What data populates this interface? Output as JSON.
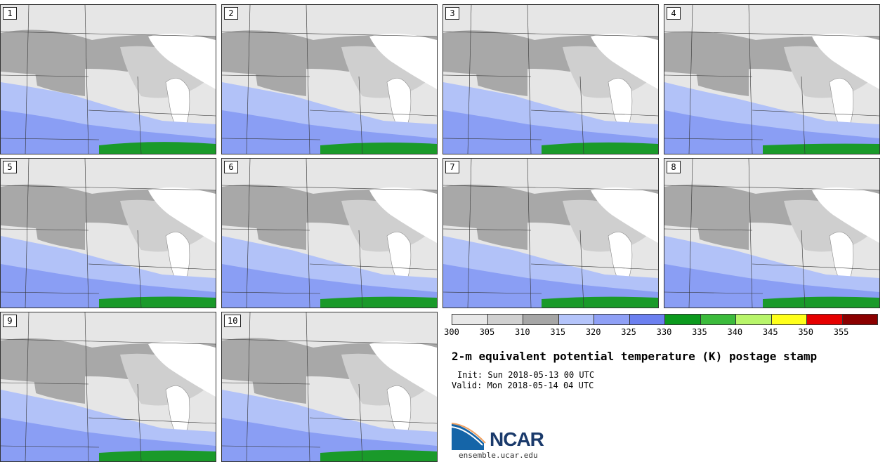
{
  "panels": [
    {
      "label": "1"
    },
    {
      "label": "2"
    },
    {
      "label": "3"
    },
    {
      "label": "4"
    },
    {
      "label": "5"
    },
    {
      "label": "6"
    },
    {
      "label": "7"
    },
    {
      "label": "8"
    },
    {
      "label": "9"
    },
    {
      "label": "10"
    }
  ],
  "legend": {
    "ticks": [
      "300",
      "305",
      "310",
      "315",
      "320",
      "325",
      "330",
      "335",
      "340",
      "345",
      "350",
      "355"
    ],
    "colors": [
      "#e8e8e8",
      "#d0d0d0",
      "#a6a6a6",
      "#b4c4fa",
      "#8fa0f6",
      "#6c80f0",
      "#0c9a1e",
      "#3cbb3c",
      "#b8f56a",
      "#ffff1a",
      "#e60000",
      "#8b0000"
    ]
  },
  "title": "2-m equivalent potential temperature (K) postage stamp",
  "init": "Init: Sun 2018-05-13 00 UTC",
  "valid": "Valid: Mon 2018-05-14 04 UTC",
  "logo": {
    "text": "NCAR",
    "url": "ensemble.ucar.edu"
  },
  "map_colors": {
    "bg_light": "#e6e6e6",
    "mid": "#a8a8a8",
    "light": "#cfcfcf",
    "white": "#ffffff",
    "blue1": "#b2c2f8",
    "blue2": "#8a9ef4",
    "green": "#1a9a2a",
    "border": "#333333"
  }
}
